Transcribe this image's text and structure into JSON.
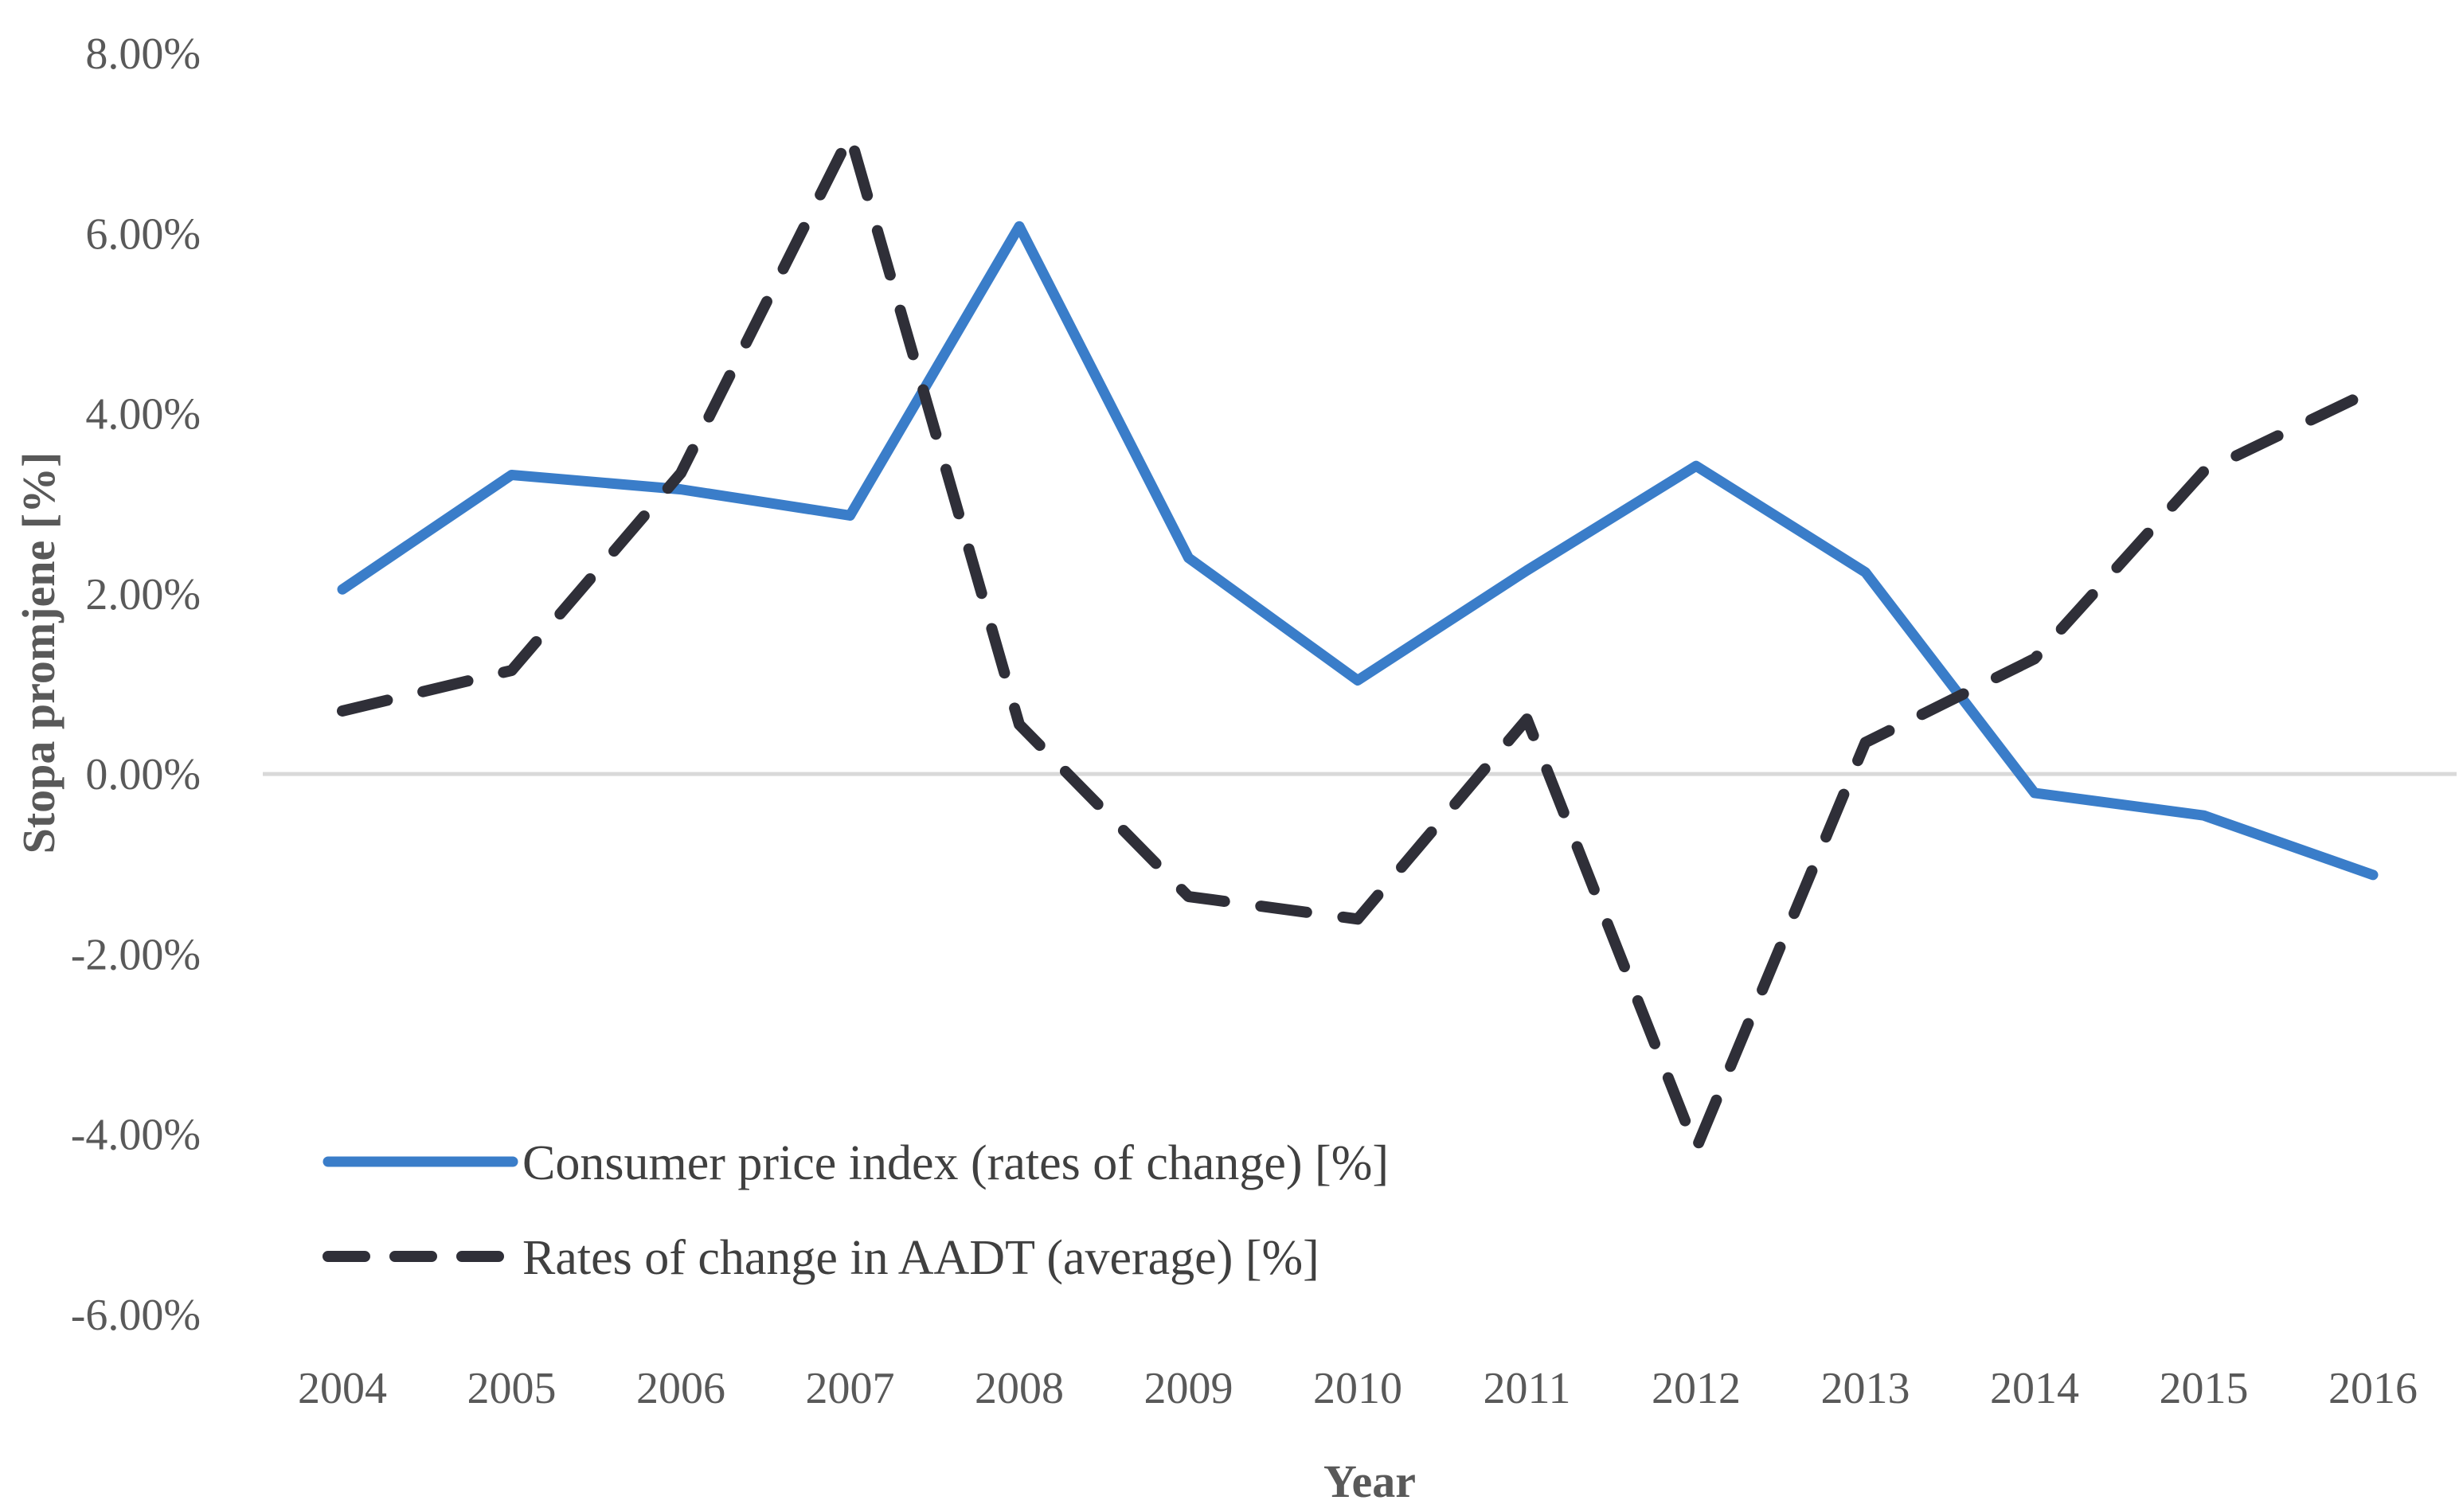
{
  "chart_data": {
    "type": "line",
    "title": "",
    "xlabel": "Year",
    "ylabel": "Stopa promjene [%]",
    "ylim": [
      -6,
      8
    ],
    "ytick_step": 2,
    "ytick_labels": [
      "8.00%",
      "6.00%",
      "4.00%",
      "2.00%",
      "0.00%",
      "-2.00%",
      "-4.00%",
      "-6.00%"
    ],
    "categories": [
      "2004",
      "2005",
      "2006",
      "2007",
      "2008",
      "2009",
      "2010",
      "2011",
      "2012",
      "2013",
      "2014",
      "2015",
      "2016"
    ],
    "grid": false,
    "zero_line": true,
    "legend_position": "bottom-left inside",
    "series": [
      {
        "name": "Consumer price index (rates of change) [%]",
        "style": "solid",
        "color": "#3a7dc9",
        "values": [
          2.05,
          3.32,
          3.16,
          2.87,
          6.08,
          2.4,
          1.04,
          2.26,
          3.42,
          2.24,
          -0.21,
          -0.46,
          -1.12
        ]
      },
      {
        "name": "Rates of change in AADT (average) [%]",
        "style": "dashed",
        "color": "#2f2f38",
        "values": [
          0.7,
          1.15,
          3.34,
          7.09,
          0.55,
          -1.36,
          -1.61,
          0.61,
          -4.16,
          0.35,
          1.28,
          3.36,
          4.26
        ]
      }
    ]
  },
  "colors": {
    "zero_line": "#d9d9d9",
    "tick_text": "#595959"
  }
}
